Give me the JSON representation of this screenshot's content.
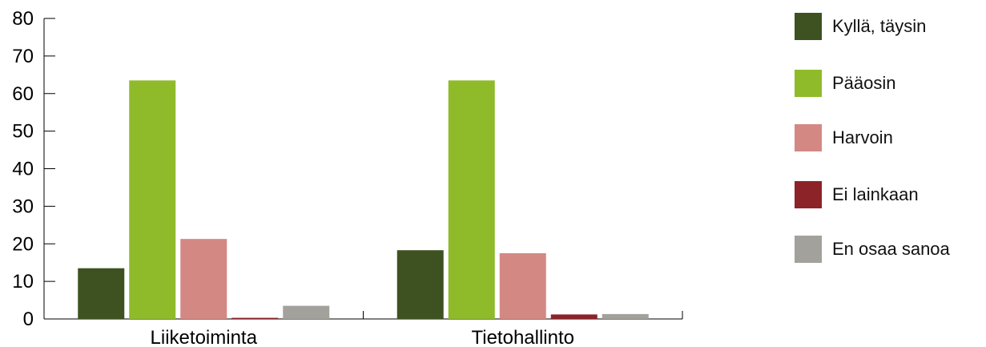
{
  "chart_data": {
    "type": "bar",
    "categories": [
      "Liiketoiminta",
      "Tietohallinto"
    ],
    "series": [
      {
        "name": "Kyllä, täysin",
        "color": "#3d5220",
        "values": [
          13.5,
          18.3
        ]
      },
      {
        "name": "Pääosin",
        "color": "#8fbb2b",
        "values": [
          63.5,
          63.5
        ]
      },
      {
        "name": "Harvoin",
        "color": "#d48884",
        "values": [
          21.3,
          17.5
        ]
      },
      {
        "name": "Ei lainkaan",
        "color": "#8b2329",
        "values": [
          0.3,
          1.2
        ]
      },
      {
        "name": "En osaa sanoa",
        "color": "#a3a19c",
        "values": [
          3.5,
          1.3
        ]
      }
    ],
    "ylim": [
      0,
      80
    ],
    "yticks": [
      "0",
      "10",
      "20",
      "30",
      "40",
      "50",
      "60",
      "70",
      "80"
    ],
    "xlabel": "",
    "ylabel": "",
    "grid": false,
    "legend_position": "right"
  }
}
